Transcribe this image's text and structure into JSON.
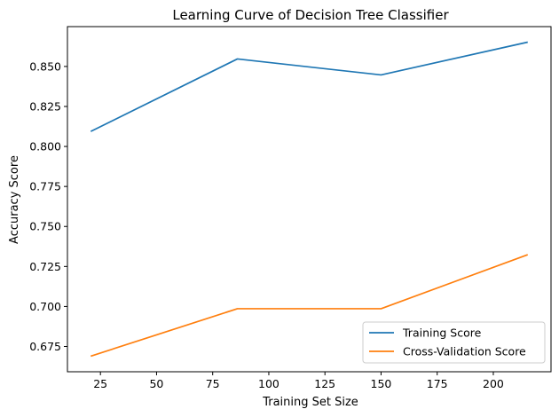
{
  "chart_data": {
    "type": "line",
    "title": "Learning Curve of Decision Tree Classifier",
    "xlabel": "Training Set Size",
    "ylabel": "Accuracy Score",
    "x": [
      21,
      86,
      150,
      215
    ],
    "series": [
      {
        "name": "Training Score",
        "values": [
          0.8096,
          0.8547,
          0.8447,
          0.8651
        ],
        "color": "#1f77b4"
      },
      {
        "name": "Cross-Validation Score",
        "values": [
          0.6691,
          0.6986,
          0.6986,
          0.7322
        ],
        "color": "#ff7f0e"
      }
    ],
    "xlim": [
      10.3,
      225.7
    ],
    "ylim": [
      0.6592,
      0.8749
    ],
    "xticks": [
      25,
      50,
      75,
      100,
      125,
      150,
      175,
      200
    ],
    "xtick_labels": [
      "25",
      "50",
      "75",
      "100",
      "125",
      "150",
      "175",
      "200"
    ],
    "yticks": [
      0.675,
      0.7,
      0.725,
      0.75,
      0.775,
      0.8,
      0.825,
      0.85
    ],
    "ytick_labels": [
      "0.675",
      "0.700",
      "0.725",
      "0.750",
      "0.775",
      "0.800",
      "0.825",
      "0.850"
    ],
    "grid": false,
    "legend_position": "lower-right"
  }
}
